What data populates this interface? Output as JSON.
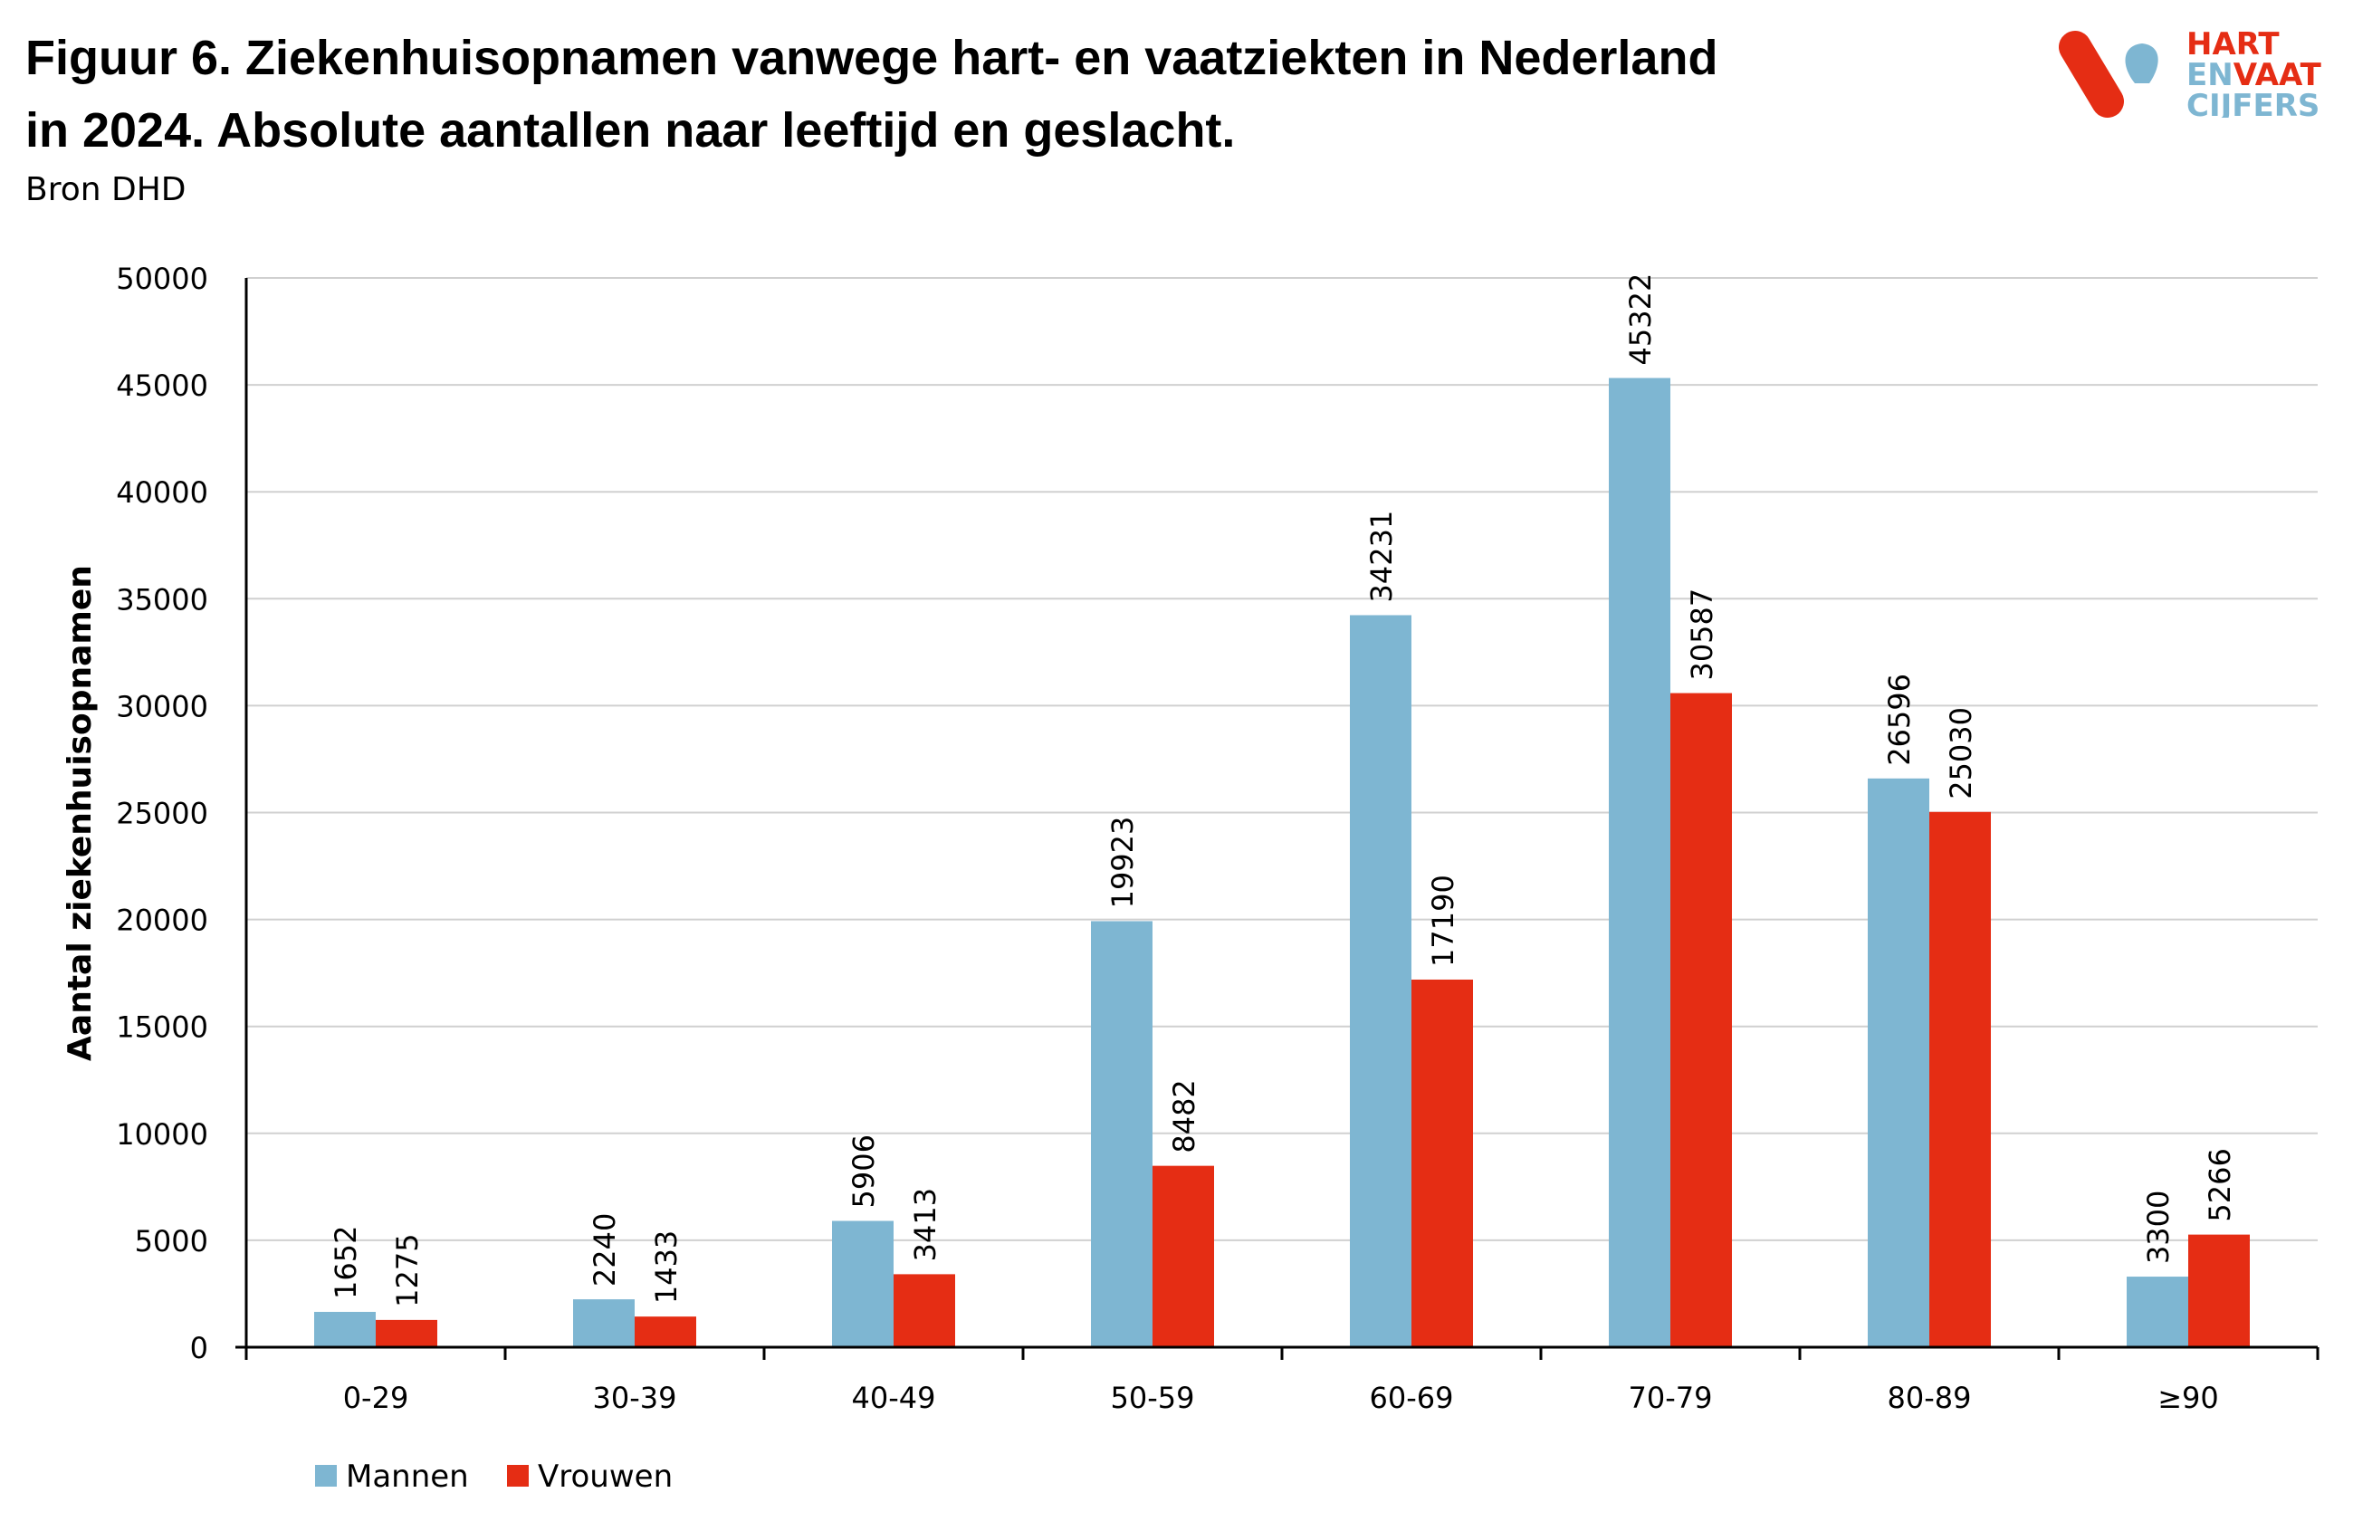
{
  "title_line1": "Figuur 6. Ziekenhuisopnamen vanwege hart- en vaatziekten in Nederland",
  "title_line2": "in 2024. Absolute aantallen naar leeftijd en geslacht.",
  "source": "Bron DHD",
  "logo": {
    "line1": "HART",
    "line2a": "EN",
    "line2b": "VAAT",
    "line3": "CIJFERS",
    "red": "#e52d14",
    "blue": "#7eb6d2"
  },
  "chart_data": {
    "type": "bar",
    "title": "",
    "xlabel": "",
    "ylabel": "Aantal ziekenhuisopnamen",
    "ylim": [
      0,
      50000
    ],
    "yticks": [
      0,
      5000,
      10000,
      15000,
      20000,
      25000,
      30000,
      35000,
      40000,
      45000,
      50000
    ],
    "grid": true,
    "legend": "bottom-left",
    "categories": [
      "0-29",
      "30-39",
      "40-49",
      "50-59",
      "60-69",
      "70-79",
      "80-89",
      "≥90"
    ],
    "series": [
      {
        "name": "Mannen",
        "color": "#7eb6d2",
        "values": [
          1652,
          2240,
          5906,
          19923,
          34231,
          45322,
          26596,
          3300
        ]
      },
      {
        "name": "Vrouwen",
        "color": "#e52d14",
        "values": [
          1275,
          1433,
          3413,
          8482,
          17190,
          30587,
          25030,
          5266
        ]
      }
    ]
  }
}
